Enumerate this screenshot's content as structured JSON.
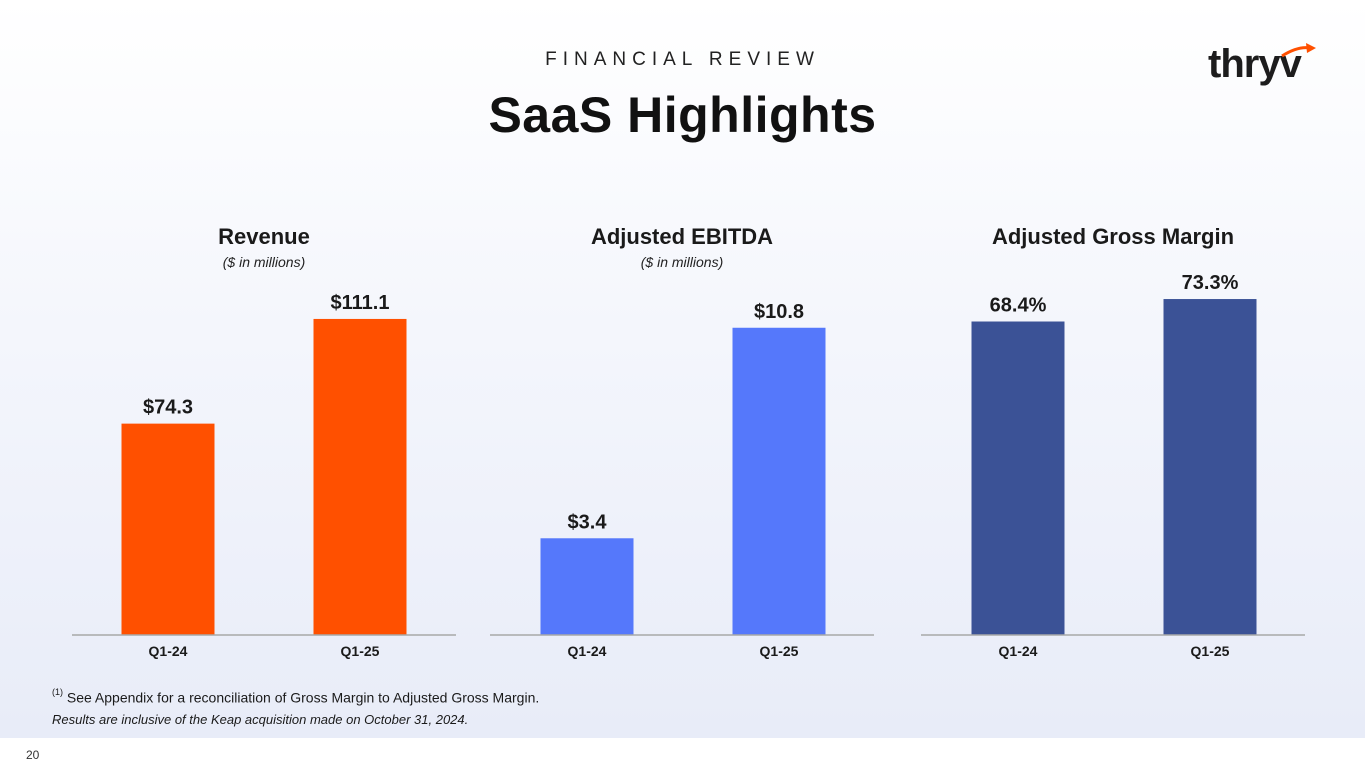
{
  "header": {
    "eyebrow": "FINANCIAL REVIEW",
    "title": "SaaS Highlights",
    "logo_text": "thryv"
  },
  "colors": {
    "revenue": "#ff5000",
    "ebitda": "#5578fb",
    "gross_margin": "#3b5296",
    "axis": "#a8a8a8",
    "logo_accent": "#ff5000"
  },
  "chart_data": [
    {
      "type": "bar",
      "title": "Revenue",
      "subtitle": "($ in millions)",
      "categories": [
        "Q1-24",
        "Q1-25"
      ],
      "values": [
        74.3,
        111.1
      ],
      "data_labels": [
        "$74.3",
        "$111.1"
      ],
      "ylim": [
        0,
        116
      ]
    },
    {
      "type": "bar",
      "title": "Adjusted EBITDA",
      "subtitle": "($ in millions)",
      "categories": [
        "Q1-24",
        "Q1-25"
      ],
      "values": [
        3.4,
        10.8
      ],
      "data_labels": [
        "$3.4",
        "$10.8"
      ],
      "ylim": [
        0,
        11.6
      ]
    },
    {
      "type": "bar",
      "title": "Adjusted Gross Margin",
      "subtitle": "",
      "categories": [
        "Q1-24",
        "Q1-25"
      ],
      "values": [
        68.4,
        73.3
      ],
      "data_labels": [
        "68.4%",
        "73.3%"
      ],
      "ylim": [
        0,
        72
      ]
    }
  ],
  "footnotes": {
    "marker": "(1)",
    "line1": "See Appendix for a reconciliation of Gross Margin to Adjusted Gross Margin.",
    "line2": "Results are inclusive of the Keap acquisition made on October 31, 2024."
  },
  "page_number": "20"
}
